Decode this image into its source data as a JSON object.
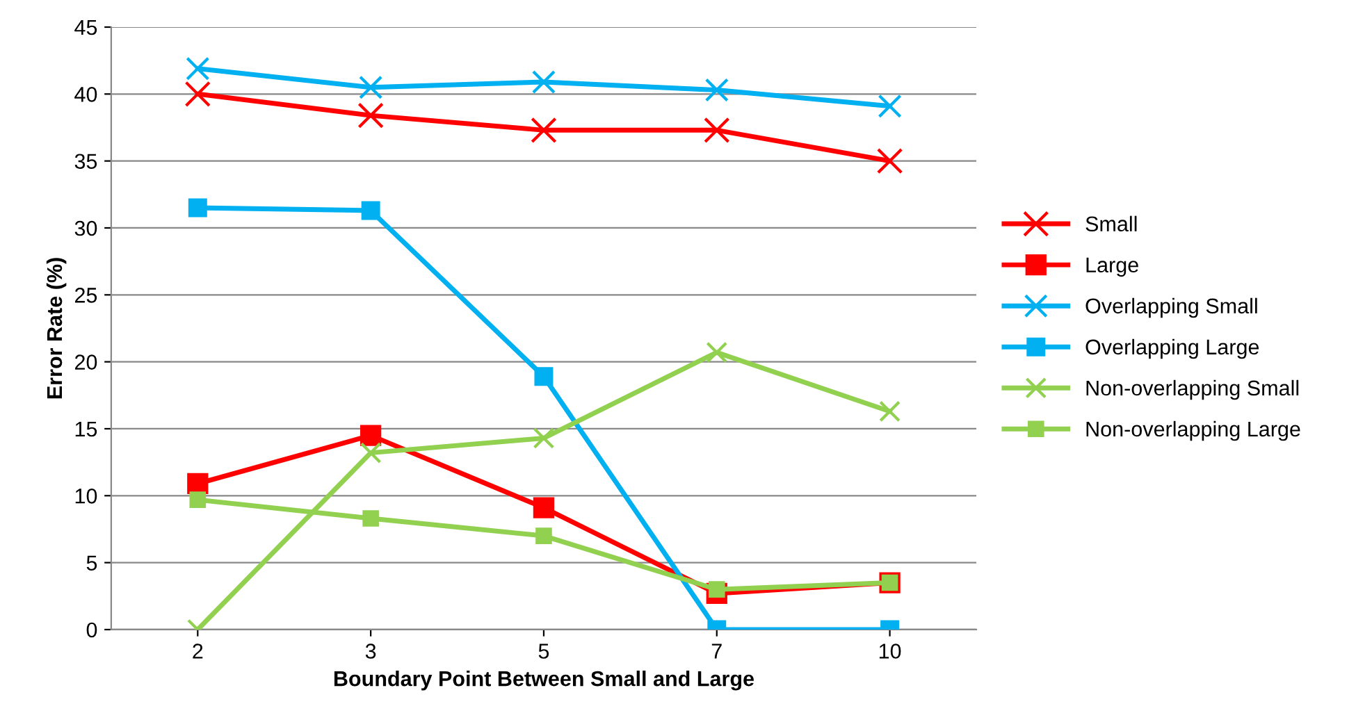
{
  "chart_data": {
    "type": "line",
    "xlabel": "Boundary Point Between Small and Large",
    "ylabel": "Error Rate (%)",
    "categories": [
      "2",
      "3",
      "5",
      "7",
      "10"
    ],
    "ylim": [
      0,
      45
    ],
    "yticks": [
      0,
      5,
      10,
      15,
      20,
      25,
      30,
      35,
      40,
      45
    ],
    "grid": "y",
    "legend": "right",
    "line_style": "solid",
    "series": [
      {
        "name": "Small",
        "color": "#ff0000",
        "marker": "cross",
        "values": [
          40.0,
          38.4,
          37.3,
          37.3,
          35.0
        ]
      },
      {
        "name": "Large",
        "color": "#ff0000",
        "marker": "square",
        "values": [
          10.9,
          14.5,
          9.1,
          2.7,
          3.5
        ]
      },
      {
        "name": "Overlapping Small",
        "color": "#00b0f0",
        "marker": "cross",
        "values": [
          41.9,
          40.5,
          40.9,
          40.3,
          39.1
        ]
      },
      {
        "name": "Overlapping Large",
        "color": "#00b0f0",
        "marker": "square",
        "values": [
          31.5,
          31.3,
          18.9,
          0,
          0
        ]
      },
      {
        "name": "Non-overlapping Small",
        "color": "#92d050",
        "marker": "cross",
        "values": [
          0,
          13.2,
          14.3,
          20.7,
          16.3
        ]
      },
      {
        "name": "Non-overlapping Large",
        "color": "#92d050",
        "marker": "square",
        "values": [
          9.7,
          8.3,
          7.0,
          3.0,
          3.5
        ]
      }
    ]
  }
}
